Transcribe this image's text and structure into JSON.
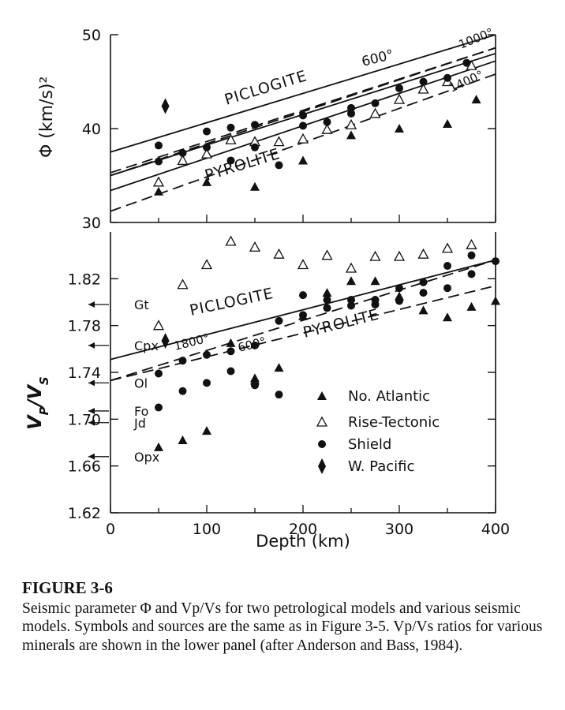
{
  "chart_data": [
    {
      "type": "scatter",
      "panel": "upper",
      "ylabel": "Φ (km/s)²",
      "ylim": [
        30,
        50
      ],
      "xlim": [
        0,
        400
      ],
      "yticks": [
        "30",
        "40",
        "50"
      ],
      "grid": false,
      "lines": [
        {
          "label": "PICLOGITE",
          "style": "solid",
          "x": [
            0,
            400
          ],
          "y": [
            37.5,
            50.0
          ]
        },
        {
          "label": "600°",
          "style": "dashed",
          "x": [
            0,
            400
          ],
          "y": [
            35.3,
            48.6
          ]
        },
        {
          "label": "1000°",
          "style": "dashed",
          "x": [
            0,
            400
          ],
          "y": [
            35.0,
            48.6
          ]
        },
        {
          "label": "1400°",
          "style": "solid",
          "x": [
            0,
            400
          ],
          "y": [
            33.4,
            47.2
          ]
        },
        {
          "label": "PYROLITE",
          "style": "dashed",
          "x": [
            0,
            400
          ],
          "y": [
            31.2,
            45.8
          ]
        },
        {
          "label": "",
          "style": "solid",
          "x": [
            0,
            400
          ],
          "y": [
            35.0,
            48.0
          ]
        }
      ],
      "series": [
        {
          "name": "No. Atlantic",
          "marker": "filled-triangle",
          "x": [
            50,
            100,
            150,
            200,
            250,
            300,
            350,
            380
          ],
          "y": [
            33.3,
            34.3,
            33.8,
            36.6,
            39.3,
            40.0,
            40.5,
            43.1
          ]
        },
        {
          "name": "Rise-Tectonic",
          "marker": "open-triangle",
          "x": [
            50,
            75,
            100,
            125,
            150,
            175,
            200,
            225,
            250,
            275,
            300,
            325,
            350,
            375
          ],
          "y": [
            34.3,
            36.6,
            37.3,
            38.8,
            38.6,
            38.6,
            38.9,
            39.9,
            40.4,
            41.6,
            43.1,
            44.2,
            45.0,
            46.7
          ]
        },
        {
          "name": "Shield",
          "marker": "filled-circle",
          "x": [
            50,
            50,
            75,
            100,
            100,
            125,
            125,
            150,
            150,
            175,
            200,
            200,
            225,
            250,
            250,
            275,
            300,
            325,
            350,
            370
          ],
          "y": [
            38.2,
            36.5,
            37.4,
            39.7,
            38.0,
            36.6,
            40.1,
            38.0,
            40.4,
            36.1,
            40.3,
            41.4,
            40.7,
            41.6,
            42.2,
            42.7,
            44.3,
            45.0,
            45.4,
            47.0
          ]
        },
        {
          "name": "W. Pacific",
          "marker": "filled-diamond",
          "x": [
            57
          ],
          "y": [
            42.4
          ]
        }
      ],
      "annotations": [
        "PICLOGITE",
        "PYROLITE",
        "600°",
        "1000°",
        "1400°"
      ]
    },
    {
      "type": "scatter",
      "panel": "lower",
      "xlabel": "Depth (km)",
      "ylabel": "VP/VS",
      "xlim": [
        0,
        400
      ],
      "ylim": [
        1.62,
        1.86
      ],
      "xticks": [
        "0",
        "100",
        "200",
        "300",
        "400"
      ],
      "yticks": [
        "1.62",
        "1.66",
        "1.70",
        "1.74",
        "1.78",
        "1.82"
      ],
      "grid": false,
      "legend": "lower-right",
      "lines": [
        {
          "label": "PICLOGITE",
          "style": "solid",
          "x": [
            0,
            400
          ],
          "y": [
            1.751,
            1.836
          ]
        },
        {
          "label": "1800°",
          "style": "dashed",
          "x": [
            0,
            400
          ],
          "y": [
            1.733,
            1.836
          ]
        },
        {
          "label": "600°",
          "style": "dashed",
          "x": [
            0,
            400
          ],
          "y": [
            1.733,
            1.814
          ]
        }
      ],
      "series": [
        {
          "name": "No. Atlantic",
          "marker": "filled-triangle",
          "x": [
            50,
            75,
            100,
            125,
            150,
            150,
            175,
            200,
            225,
            250,
            275,
            300,
            325,
            350,
            375,
            400
          ],
          "y": [
            1.676,
            1.682,
            1.69,
            1.765,
            1.735,
            1.733,
            1.744,
            1.788,
            1.808,
            1.818,
            1.818,
            1.805,
            1.793,
            1.787,
            1.796,
            1.801
          ]
        },
        {
          "name": "Rise-Tectonic",
          "marker": "open-triangle",
          "x": [
            50,
            75,
            100,
            125,
            150,
            175,
            200,
            225,
            250,
            275,
            300,
            325,
            350,
            375
          ],
          "y": [
            1.78,
            1.815,
            1.832,
            1.852,
            1.847,
            1.841,
            1.832,
            1.84,
            1.829,
            1.839,
            1.839,
            1.841,
            1.846,
            1.849
          ]
        },
        {
          "name": "Shield",
          "marker": "filled-circle",
          "x": [
            50,
            50,
            75,
            75,
            100,
            100,
            125,
            125,
            150,
            150,
            175,
            175,
            200,
            200,
            225,
            225,
            250,
            250,
            275,
            275,
            300,
            300,
            325,
            325,
            350,
            350,
            375,
            375,
            400
          ],
          "y": [
            1.739,
            1.71,
            1.75,
            1.724,
            1.755,
            1.731,
            1.758,
            1.741,
            1.763,
            1.729,
            1.784,
            1.721,
            1.789,
            1.806,
            1.795,
            1.802,
            1.797,
            1.802,
            1.798,
            1.802,
            1.801,
            1.812,
            1.808,
            1.817,
            1.812,
            1.831,
            1.824,
            1.84,
            1.835
          ]
        },
        {
          "name": "W. Pacific",
          "marker": "filled-diamond",
          "x": [
            57
          ],
          "y": [
            1.767
          ]
        }
      ],
      "minerals": [
        {
          "label": "Gt",
          "value": 1.798
        },
        {
          "label": "Cpx",
          "value": 1.763
        },
        {
          "label": "Ol",
          "value": 1.731
        },
        {
          "label": "Fo",
          "value": 1.707
        },
        {
          "label": "Jd",
          "value": 1.697
        },
        {
          "label": "Opx",
          "value": 1.668
        }
      ],
      "annotations": [
        "PICLOGITE",
        "PYROLITE",
        "1800°",
        "600°"
      ]
    }
  ],
  "caption": {
    "label": "FIGURE 3-6",
    "text": "Seismic parameter Φ and Vp/Vs for two petrological models and various seismic models. Symbols and sources are the same as in Figure 3-5. Vp/Vs ratios for various minerals are shown in the lower panel (after Anderson and Bass, 1984)."
  }
}
